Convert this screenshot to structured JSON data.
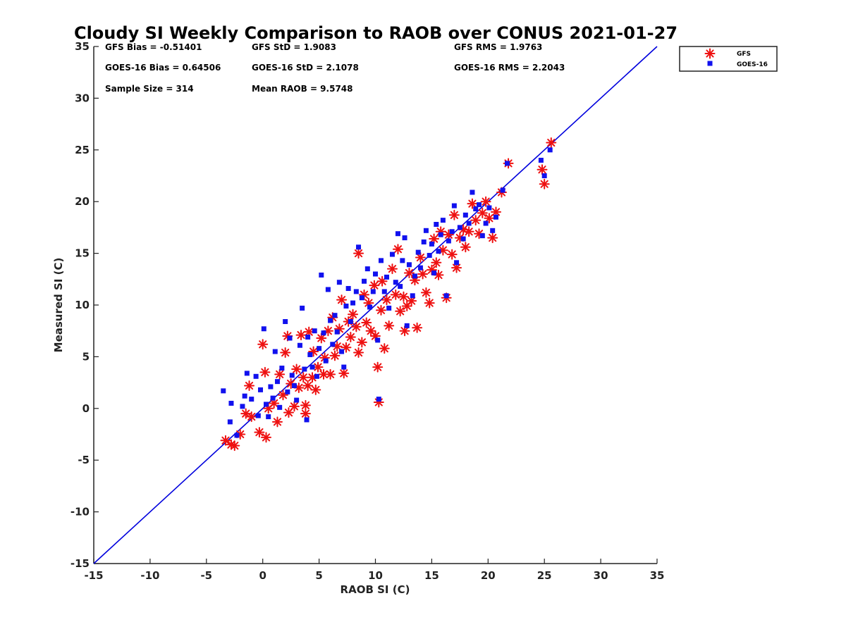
{
  "chart_data": {
    "type": "scatter",
    "title": "Cloudy SI Weekly Comparison to RAOB over CONUS 2021-01-27",
    "xlabel": "RAOB SI (C)",
    "ylabel": "Measured SI (C)",
    "xlim": [
      -15,
      35
    ],
    "ylim": [
      -15,
      35
    ],
    "x_ticks": [
      -15,
      -10,
      -5,
      0,
      5,
      10,
      15,
      20,
      25,
      30,
      35
    ],
    "y_ticks": [
      -15,
      -10,
      -5,
      0,
      5,
      10,
      15,
      20,
      25,
      30,
      35
    ],
    "grid": false,
    "legend_position": "outside-top-right",
    "reference_line": {
      "x": [
        -15,
        35
      ],
      "y": [
        -15,
        35
      ],
      "color": "#0000dd"
    },
    "stats": [
      "GFS Bias = -0.51401",
      "GFS StD = 1.9083",
      "GFS RMS = 1.9763",
      "GOES-16 Bias = 0.64506",
      "GOES-16 StD = 2.1078",
      "GOES-16 RMS = 2.2043",
      "Sample Size = 314",
      "Mean RAOB = 9.5748"
    ],
    "series": [
      {
        "name": "GFS",
        "marker": "asterisk",
        "color": "#ee1111",
        "points": [
          [
            -3.3,
            -3.1
          ],
          [
            -2.8,
            -3.5
          ],
          [
            -2.5,
            -3.6
          ],
          [
            -2.0,
            -2.5
          ],
          [
            -1.5,
            -0.5
          ],
          [
            -1.2,
            2.2
          ],
          [
            -1.0,
            -0.8
          ],
          [
            -0.3,
            -2.3
          ],
          [
            0.0,
            6.2
          ],
          [
            0.3,
            -2.8
          ],
          [
            0.2,
            3.5
          ],
          [
            0.5,
            0.0
          ],
          [
            1.0,
            0.5
          ],
          [
            1.3,
            -1.3
          ],
          [
            1.5,
            3.3
          ],
          [
            1.8,
            1.3
          ],
          [
            2.0,
            5.4
          ],
          [
            2.2,
            7.0
          ],
          [
            2.3,
            -0.4
          ],
          [
            2.5,
            2.4
          ],
          [
            2.8,
            0.2
          ],
          [
            3.0,
            3.8
          ],
          [
            3.2,
            2.0
          ],
          [
            3.4,
            7.1
          ],
          [
            3.6,
            3.0
          ],
          [
            3.8,
            0.3
          ],
          [
            3.8,
            -0.5
          ],
          [
            4.0,
            2.2
          ],
          [
            4.1,
            7.4
          ],
          [
            4.4,
            3.0
          ],
          [
            4.5,
            5.5
          ],
          [
            4.7,
            1.8
          ],
          [
            4.9,
            4.0
          ],
          [
            5.2,
            6.8
          ],
          [
            5.4,
            3.3
          ],
          [
            5.5,
            4.9
          ],
          [
            5.8,
            7.5
          ],
          [
            6.0,
            3.3
          ],
          [
            6.2,
            8.8
          ],
          [
            6.4,
            5.1
          ],
          [
            6.6,
            6.0
          ],
          [
            6.8,
            7.7
          ],
          [
            7.0,
            10.5
          ],
          [
            7.2,
            3.4
          ],
          [
            7.4,
            5.9
          ],
          [
            7.6,
            8.4
          ],
          [
            7.8,
            6.9
          ],
          [
            8.0,
            9.1
          ],
          [
            8.3,
            7.9
          ],
          [
            8.5,
            15.0
          ],
          [
            8.5,
            5.4
          ],
          [
            8.8,
            6.4
          ],
          [
            9.0,
            11.0
          ],
          [
            9.2,
            8.3
          ],
          [
            9.4,
            10.2
          ],
          [
            9.6,
            7.5
          ],
          [
            9.9,
            11.9
          ],
          [
            10.0,
            7.0
          ],
          [
            10.2,
            4.0
          ],
          [
            10.3,
            0.6
          ],
          [
            10.5,
            9.5
          ],
          [
            10.6,
            12.3
          ],
          [
            10.8,
            5.8
          ],
          [
            11.0,
            10.5
          ],
          [
            11.2,
            8.0
          ],
          [
            11.5,
            13.5
          ],
          [
            11.8,
            11.0
          ],
          [
            12.0,
            15.4
          ],
          [
            12.2,
            9.4
          ],
          [
            12.5,
            10.8
          ],
          [
            12.6,
            7.5
          ],
          [
            12.8,
            9.9
          ],
          [
            13.0,
            13.1
          ],
          [
            13.2,
            10.4
          ],
          [
            13.5,
            12.4
          ],
          [
            13.7,
            7.8
          ],
          [
            14.0,
            14.6
          ],
          [
            14.2,
            13.0
          ],
          [
            14.5,
            11.2
          ],
          [
            14.8,
            10.2
          ],
          [
            15.0,
            13.4
          ],
          [
            15.2,
            16.4
          ],
          [
            15.4,
            14.1
          ],
          [
            15.6,
            12.9
          ],
          [
            15.8,
            17.1
          ],
          [
            16.0,
            15.3
          ],
          [
            16.3,
            10.7
          ],
          [
            16.5,
            16.8
          ],
          [
            16.8,
            14.9
          ],
          [
            17.0,
            18.7
          ],
          [
            17.2,
            13.6
          ],
          [
            17.5,
            16.5
          ],
          [
            17.8,
            17.3
          ],
          [
            18.0,
            15.6
          ],
          [
            18.3,
            17.1
          ],
          [
            18.6,
            19.8
          ],
          [
            18.9,
            18.2
          ],
          [
            19.2,
            16.9
          ],
          [
            19.5,
            18.9
          ],
          [
            19.8,
            20.0
          ],
          [
            20.1,
            18.4
          ],
          [
            20.4,
            16.5
          ],
          [
            20.7,
            19.0
          ],
          [
            21.2,
            20.9
          ],
          [
            21.8,
            23.7
          ],
          [
            24.8,
            23.1
          ],
          [
            25.0,
            21.7
          ],
          [
            25.6,
            25.7
          ]
        ]
      },
      {
        "name": "GOES-16",
        "marker": "square",
        "color": "#1111ee",
        "points": [
          [
            -3.5,
            1.7
          ],
          [
            -2.9,
            -1.3
          ],
          [
            -2.8,
            0.5
          ],
          [
            -2.3,
            -2.6
          ],
          [
            -1.8,
            0.2
          ],
          [
            -1.6,
            1.2
          ],
          [
            -1.4,
            3.4
          ],
          [
            -1.0,
            0.9
          ],
          [
            -0.6,
            3.1
          ],
          [
            -0.4,
            -0.7
          ],
          [
            -0.2,
            1.8
          ],
          [
            0.1,
            7.7
          ],
          [
            0.3,
            0.4
          ],
          [
            0.5,
            -0.8
          ],
          [
            0.7,
            2.1
          ],
          [
            0.9,
            1.0
          ],
          [
            1.1,
            5.5
          ],
          [
            1.3,
            2.6
          ],
          [
            1.5,
            0.1
          ],
          [
            1.7,
            3.9
          ],
          [
            2.0,
            8.4
          ],
          [
            2.2,
            1.6
          ],
          [
            2.4,
            6.8
          ],
          [
            2.6,
            3.2
          ],
          [
            2.8,
            2.2
          ],
          [
            3.0,
            0.8
          ],
          [
            3.3,
            6.1
          ],
          [
            3.5,
            9.7
          ],
          [
            3.7,
            3.8
          ],
          [
            3.9,
            -1.1
          ],
          [
            4.0,
            6.9
          ],
          [
            4.2,
            5.2
          ],
          [
            4.4,
            4.0
          ],
          [
            4.6,
            7.5
          ],
          [
            4.8,
            3.1
          ],
          [
            5.0,
            5.8
          ],
          [
            5.2,
            12.9
          ],
          [
            5.4,
            7.3
          ],
          [
            5.6,
            4.6
          ],
          [
            5.8,
            11.5
          ],
          [
            6.0,
            8.5
          ],
          [
            6.2,
            6.2
          ],
          [
            6.4,
            9.0
          ],
          [
            6.6,
            7.4
          ],
          [
            6.8,
            12.2
          ],
          [
            7.0,
            5.5
          ],
          [
            7.2,
            4.0
          ],
          [
            7.4,
            9.9
          ],
          [
            7.6,
            11.6
          ],
          [
            7.8,
            8.4
          ],
          [
            8.0,
            10.2
          ],
          [
            8.3,
            11.3
          ],
          [
            8.5,
            15.6
          ],
          [
            8.8,
            10.7
          ],
          [
            9.0,
            12.3
          ],
          [
            9.3,
            13.5
          ],
          [
            9.5,
            9.8
          ],
          [
            9.8,
            11.3
          ],
          [
            10.0,
            13.0
          ],
          [
            10.2,
            6.6
          ],
          [
            10.3,
            0.9
          ],
          [
            10.5,
            14.3
          ],
          [
            10.8,
            11.3
          ],
          [
            11.0,
            12.7
          ],
          [
            11.2,
            9.7
          ],
          [
            11.5,
            14.9
          ],
          [
            11.8,
            12.2
          ],
          [
            12.0,
            16.9
          ],
          [
            12.2,
            11.8
          ],
          [
            12.4,
            14.3
          ],
          [
            12.6,
            16.5
          ],
          [
            12.8,
            8.0
          ],
          [
            13.0,
            13.9
          ],
          [
            13.3,
            10.9
          ],
          [
            13.5,
            12.8
          ],
          [
            13.8,
            15.1
          ],
          [
            14.0,
            13.6
          ],
          [
            14.3,
            16.1
          ],
          [
            14.5,
            17.2
          ],
          [
            14.8,
            14.8
          ],
          [
            15.0,
            15.9
          ],
          [
            15.2,
            13.1
          ],
          [
            15.4,
            17.8
          ],
          [
            15.6,
            15.2
          ],
          [
            15.8,
            16.8
          ],
          [
            16.0,
            18.2
          ],
          [
            16.3,
            10.9
          ],
          [
            16.5,
            16.2
          ],
          [
            16.8,
            17.1
          ],
          [
            17.0,
            19.6
          ],
          [
            17.2,
            14.1
          ],
          [
            17.5,
            17.5
          ],
          [
            17.8,
            16.4
          ],
          [
            18.0,
            18.7
          ],
          [
            18.3,
            17.9
          ],
          [
            18.6,
            20.9
          ],
          [
            18.9,
            19.3
          ],
          [
            19.2,
            19.7
          ],
          [
            19.5,
            16.7
          ],
          [
            19.8,
            17.9
          ],
          [
            20.1,
            19.4
          ],
          [
            20.4,
            17.2
          ],
          [
            20.7,
            18.5
          ],
          [
            21.3,
            21.1
          ],
          [
            21.7,
            23.7
          ],
          [
            24.7,
            24.0
          ],
          [
            25.0,
            22.5
          ],
          [
            25.5,
            25.0
          ]
        ]
      }
    ]
  }
}
